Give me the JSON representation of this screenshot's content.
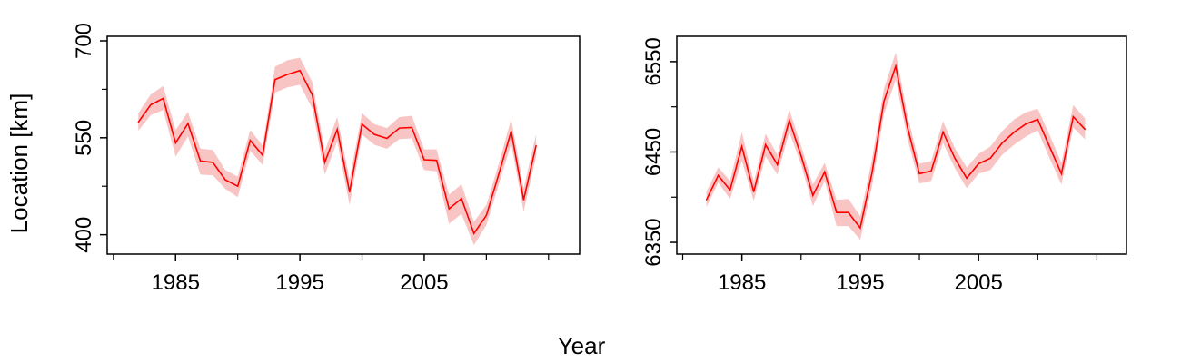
{
  "shared": {
    "xlabel": "Year",
    "ylabel": "Location [km]",
    "line_color": "#ff0000",
    "band_color": "#f9c4c4"
  },
  "chart_data": [
    {
      "type": "line",
      "title": "",
      "xlabel": "Year",
      "ylabel": "Location [km]",
      "xlim": [
        1979.5,
        2017.5
      ],
      "ylim": [
        370,
        707
      ],
      "xticks": [
        1985,
        1995,
        2005
      ],
      "xminor_ticks": [
        1980,
        1990,
        2000,
        2010,
        2015
      ],
      "yticks": [
        400,
        550,
        700
      ],
      "yminor_ticks": [
        475,
        625
      ],
      "grid": false,
      "series": [
        {
          "x": [
            1982,
            1983,
            1984,
            1985,
            1986,
            1987,
            1988,
            1989,
            1990,
            1991,
            1992,
            1993,
            1994,
            1995,
            1996,
            1997,
            1998,
            1999,
            2000,
            2001,
            2002,
            2003,
            2004,
            2005,
            2006,
            2007,
            2008,
            2009,
            2010,
            2011,
            2012,
            2013,
            2014
          ],
          "y": [
            574,
            601,
            611,
            542,
            572,
            514,
            512,
            485,
            475,
            546,
            523,
            640,
            648,
            654,
            616,
            512,
            563,
            466,
            571,
            555,
            549,
            565,
            566,
            516,
            515,
            440,
            456,
            402,
            430,
            494,
            560,
            454,
            538
          ],
          "lower": [
            561,
            585,
            593,
            521,
            552,
            493,
            492,
            471,
            458,
            530,
            508,
            620,
            628,
            632,
            595,
            493,
            544,
            446,
            555,
            539,
            533,
            548,
            549,
            500,
            498,
            417,
            432,
            384,
            415,
            478,
            541,
            436,
            521
          ],
          "upper": [
            588,
            617,
            630,
            562,
            590,
            533,
            531,
            500,
            490,
            562,
            538,
            660,
            670,
            674,
            636,
            530,
            582,
            486,
            588,
            571,
            565,
            582,
            584,
            532,
            532,
            462,
            478,
            420,
            446,
            510,
            579,
            472,
            555
          ]
        }
      ]
    },
    {
      "type": "line",
      "title": "",
      "xlabel": "Year",
      "ylabel": "",
      "xlim": [
        1979.5,
        2017.5
      ],
      "ylim": [
        6337,
        6578
      ],
      "xticks": [
        1985,
        1995,
        2005
      ],
      "xminor_ticks": [
        1980,
        1990,
        2000,
        2010,
        2015
      ],
      "yticks": [
        6350,
        6450,
        6550
      ],
      "yminor_ticks": [
        6400,
        6500
      ],
      "grid": false,
      "series": [
        {
          "x": [
            1982,
            1983,
            1984,
            1985,
            1986,
            1987,
            1988,
            1989,
            1990,
            1991,
            1992,
            1993,
            1994,
            1995,
            1996,
            1997,
            1998,
            1999,
            2000,
            2001,
            2002,
            2003,
            2004,
            2005,
            2006,
            2007,
            2008,
            2009,
            2010,
            2011,
            2012,
            2013,
            2014
          ],
          "y": [
            6397,
            6424,
            6408,
            6456,
            6406,
            6458,
            6436,
            6485,
            6446,
            6402,
            6428,
            6383,
            6383,
            6366,
            6427,
            6506,
            6545,
            6477,
            6426,
            6429,
            6472,
            6443,
            6421,
            6437,
            6443,
            6460,
            6472,
            6481,
            6486,
            6456,
            6426,
            6489,
            6475
          ],
          "lower": [
            6389,
            6416,
            6398,
            6440,
            6396,
            6445,
            6425,
            6472,
            6436,
            6390,
            6418,
            6368,
            6368,
            6353,
            6412,
            6492,
            6530,
            6464,
            6415,
            6418,
            6460,
            6432,
            6410,
            6426,
            6430,
            6447,
            6458,
            6467,
            6474,
            6443,
            6414,
            6477,
            6464
          ],
          "upper": [
            6406,
            6433,
            6418,
            6472,
            6417,
            6470,
            6447,
            6497,
            6457,
            6414,
            6438,
            6397,
            6398,
            6379,
            6442,
            6520,
            6560,
            6490,
            6437,
            6440,
            6484,
            6454,
            6433,
            6448,
            6456,
            6473,
            6486,
            6494,
            6498,
            6469,
            6438,
            6502,
            6487
          ]
        }
      ]
    }
  ]
}
